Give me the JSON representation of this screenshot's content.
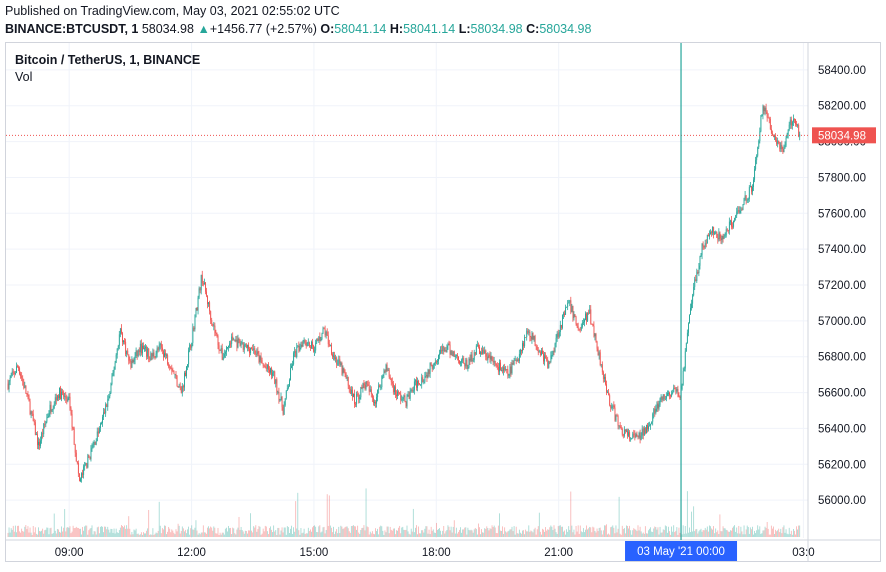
{
  "header": {
    "published": "Published on TradingView.com, May 03, 2021 02:55:02 UTC",
    "symbol": "BINANCE:BTCUSDT, 1",
    "last": "58034.98",
    "change": "+1456.77 (+2.57%)",
    "o_label": "O:",
    "o_value": "58041.14",
    "h_label": "H:",
    "h_value": "58041.14",
    "l_label": "L:",
    "l_value": "58034.98",
    "c_label": "C:",
    "c_value": "58034.98",
    "up_arrow": "▲"
  },
  "legend": {
    "title": "Bitcoin / TetherUS, 1, BINANCE",
    "volume": "Vol"
  },
  "colors": {
    "up": "#26a69a",
    "down": "#ef5350",
    "grid": "#f0f3fa",
    "axis_text": "#131722",
    "crosshair": "#26a69a",
    "price_line": "#ef5350",
    "time_highlight": "#2962ff"
  },
  "chart_data": {
    "type": "candlestick",
    "symbol": "BTCUSDT",
    "interval": "1",
    "exchange": "BINANCE",
    "y_ticks": [
      "58400.00",
      "58200.00",
      "58000.00",
      "57800.00",
      "57600.00",
      "57400.00",
      "57200.00",
      "57000.00",
      "56800.00",
      "56600.00",
      "56400.00",
      "56200.00",
      "56000.00"
    ],
    "x_ticks": [
      "09:00",
      "12:00",
      "15:00",
      "18:00",
      "21:00",
      "00:00",
      "03:0"
    ],
    "ylim": [
      55800,
      58550
    ],
    "current_price": "58034.98",
    "crosshair_label": "03 May '21   00:00",
    "grid": true,
    "close_series": [
      {
        "t": "07:30",
        "close": 56650
      },
      {
        "t": "07:45",
        "close": 56750
      },
      {
        "t": "08:00",
        "close": 56550
      },
      {
        "t": "08:15",
        "close": 56300
      },
      {
        "t": "08:30",
        "close": 56500
      },
      {
        "t": "08:45",
        "close": 56600
      },
      {
        "t": "09:00",
        "close": 56550
      },
      {
        "t": "09:15",
        "close": 56100
      },
      {
        "t": "09:30",
        "close": 56250
      },
      {
        "t": "09:45",
        "close": 56400
      },
      {
        "t": "10:00",
        "close": 56600
      },
      {
        "t": "10:15",
        "close": 56950
      },
      {
        "t": "10:30",
        "close": 56750
      },
      {
        "t": "10:45",
        "close": 56850
      },
      {
        "t": "11:00",
        "close": 56800
      },
      {
        "t": "11:15",
        "close": 56850
      },
      {
        "t": "11:30",
        "close": 56750
      },
      {
        "t": "11:45",
        "close": 56600
      },
      {
        "t": "12:00",
        "close": 56900
      },
      {
        "t": "12:15",
        "close": 57250
      },
      {
        "t": "12:30",
        "close": 57000
      },
      {
        "t": "12:45",
        "close": 56800
      },
      {
        "t": "13:00",
        "close": 56900
      },
      {
        "t": "13:15",
        "close": 56850
      },
      {
        "t": "13:30",
        "close": 56850
      },
      {
        "t": "13:45",
        "close": 56750
      },
      {
        "t": "14:00",
        "close": 56700
      },
      {
        "t": "14:15",
        "close": 56500
      },
      {
        "t": "14:30",
        "close": 56800
      },
      {
        "t": "14:45",
        "close": 56900
      },
      {
        "t": "15:00",
        "close": 56850
      },
      {
        "t": "15:15",
        "close": 56950
      },
      {
        "t": "15:30",
        "close": 56800
      },
      {
        "t": "15:45",
        "close": 56700
      },
      {
        "t": "16:00",
        "close": 56550
      },
      {
        "t": "16:15",
        "close": 56650
      },
      {
        "t": "16:30",
        "close": 56550
      },
      {
        "t": "16:45",
        "close": 56750
      },
      {
        "t": "17:00",
        "close": 56600
      },
      {
        "t": "17:15",
        "close": 56550
      },
      {
        "t": "17:30",
        "close": 56650
      },
      {
        "t": "17:45",
        "close": 56700
      },
      {
        "t": "18:00",
        "close": 56800
      },
      {
        "t": "18:15",
        "close": 56850
      },
      {
        "t": "18:30",
        "close": 56800
      },
      {
        "t": "18:45",
        "close": 56750
      },
      {
        "t": "19:00",
        "close": 56850
      },
      {
        "t": "19:15",
        "close": 56800
      },
      {
        "t": "19:30",
        "close": 56750
      },
      {
        "t": "19:45",
        "close": 56700
      },
      {
        "t": "20:00",
        "close": 56800
      },
      {
        "t": "20:15",
        "close": 56950
      },
      {
        "t": "20:30",
        "close": 56850
      },
      {
        "t": "20:45",
        "close": 56750
      },
      {
        "t": "21:00",
        "close": 56950
      },
      {
        "t": "21:15",
        "close": 57100
      },
      {
        "t": "21:30",
        "close": 56950
      },
      {
        "t": "21:45",
        "close": 57050
      },
      {
        "t": "22:00",
        "close": 56800
      },
      {
        "t": "22:15",
        "close": 56550
      },
      {
        "t": "22:30",
        "close": 56400
      },
      {
        "t": "22:45",
        "close": 56350
      },
      {
        "t": "23:00",
        "close": 56350
      },
      {
        "t": "23:15",
        "close": 56450
      },
      {
        "t": "23:30",
        "close": 56550
      },
      {
        "t": "23:45",
        "close": 56600
      },
      {
        "t": "00:00",
        "close": 56600
      },
      {
        "t": "00:15",
        "close": 57100
      },
      {
        "t": "00:30",
        "close": 57400
      },
      {
        "t": "00:45",
        "close": 57500
      },
      {
        "t": "01:00",
        "close": 57450
      },
      {
        "t": "01:15",
        "close": 57550
      },
      {
        "t": "01:30",
        "close": 57650
      },
      {
        "t": "01:45",
        "close": 57750
      },
      {
        "t": "02:00",
        "close": 58200
      },
      {
        "t": "02:15",
        "close": 58050
      },
      {
        "t": "02:30",
        "close": 57950
      },
      {
        "t": "02:45",
        "close": 58150
      },
      {
        "t": "02:55",
        "close": 58035
      }
    ]
  }
}
